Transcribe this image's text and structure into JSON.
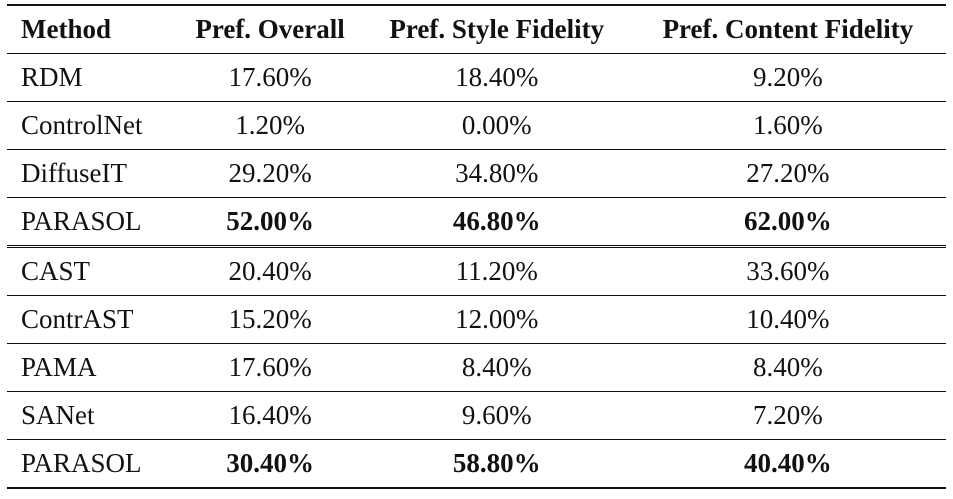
{
  "table": {
    "headers": [
      "Method",
      "Pref. Overall",
      "Pref. Style Fidelity",
      "Pref. Content Fidelity"
    ],
    "group1": [
      {
        "method": "RDM",
        "overall": "17.60%",
        "style": "18.40%",
        "content": "9.20%"
      },
      {
        "method": "ControlNet",
        "overall": "1.20%",
        "style": "0.00%",
        "content": "1.60%"
      },
      {
        "method": "DiffuseIT",
        "overall": "29.20%",
        "style": "34.80%",
        "content": "27.20%"
      },
      {
        "method": "PARASOL",
        "overall": "52.00%",
        "style": "46.80%",
        "content": "62.00%",
        "bold": true
      }
    ],
    "group2": [
      {
        "method": "CAST",
        "overall": "20.40%",
        "style": "11.20%",
        "content": "33.60%"
      },
      {
        "method": "ContrAST",
        "overall": "15.20%",
        "style": "12.00%",
        "content": "10.40%"
      },
      {
        "method": "PAMA",
        "overall": "17.60%",
        "style": "8.40%",
        "content": "8.40%"
      },
      {
        "method": "SANet",
        "overall": "16.40%",
        "style": "9.60%",
        "content": "7.20%"
      },
      {
        "method": "PARASOL",
        "overall": "30.40%",
        "style": "58.80%",
        "content": "40.40%",
        "bold": true
      }
    ]
  }
}
